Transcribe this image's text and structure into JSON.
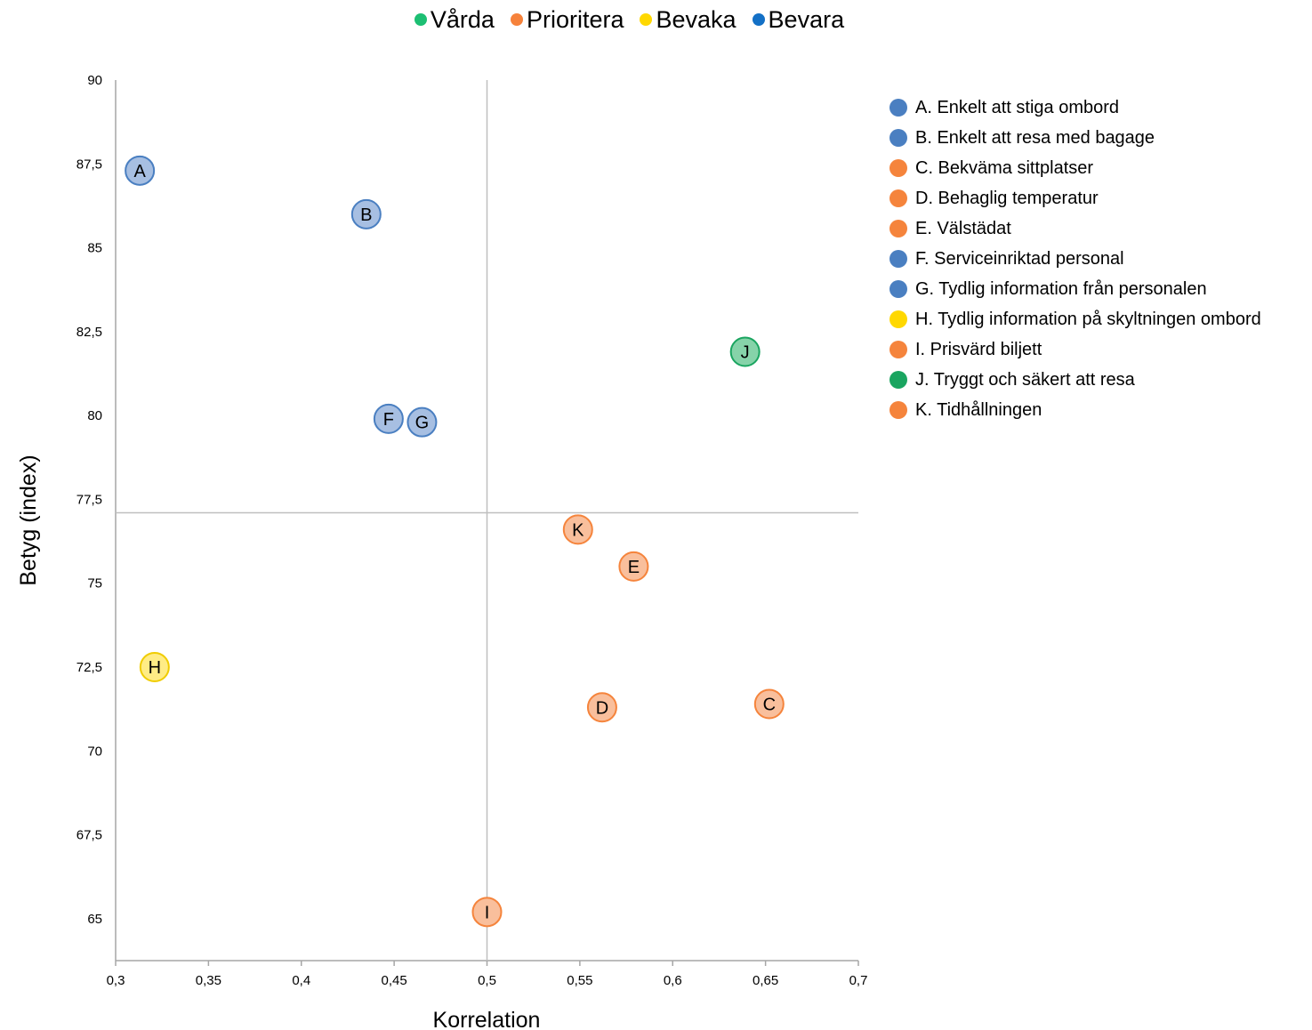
{
  "legend": {
    "items": [
      {
        "label": "Vårda",
        "color": "#1dbf73"
      },
      {
        "label": "Prioritera",
        "color": "#f6823b"
      },
      {
        "label": "Bevaka",
        "color": "#ffd800"
      },
      {
        "label": "Bevara",
        "color": "#1370c6"
      }
    ]
  },
  "point_legend": [
    {
      "label": "A. Enkelt att stiga ombord",
      "color": "#4a7fc1"
    },
    {
      "label": "B. Enkelt att resa med bagage",
      "color": "#4a7fc1"
    },
    {
      "label": "C. Bekväma sittplatser",
      "color": "#f5843c"
    },
    {
      "label": "D. Behaglig temperatur",
      "color": "#f5843c"
    },
    {
      "label": "E. Välstädat",
      "color": "#f5843c"
    },
    {
      "label": "F. Serviceinriktad personal",
      "color": "#4a7fc1"
    },
    {
      "label": "G. Tydlig information från personalen",
      "color": "#4a7fc1"
    },
    {
      "label": "H. Tydlig information på skyltningen ombord",
      "color": "#ffd800"
    },
    {
      "label": "I. Prisvärd biljett",
      "color": "#f5843c"
    },
    {
      "label": "J. Tryggt och säkert att resa",
      "color": "#1aa560"
    },
    {
      "label": "K. Tidhållningen",
      "color": "#f5843c"
    }
  ],
  "chart_data": {
    "type": "scatter",
    "xlabel": "Korrelation",
    "ylabel": "Betyg (index)",
    "xlim": [
      0.3,
      0.7
    ],
    "ylim": [
      63.75,
      90
    ],
    "x_ticks": [
      "0,3",
      "0,35",
      "0,4",
      "0,45",
      "0,5",
      "0,55",
      "0,6",
      "0,65",
      "0,7"
    ],
    "y_ticks": [
      "65",
      "67,5",
      "70",
      "72,5",
      "75",
      "77,5",
      "80",
      "82,5",
      "85",
      "87,5",
      "90"
    ],
    "quadrant_lines": {
      "x": 0.5,
      "y": 77.1
    },
    "grid": false,
    "points": [
      {
        "label": "A",
        "x": 0.313,
        "y": 87.3,
        "fill": "#a7bfe2",
        "stroke": "#4a7fc1"
      },
      {
        "label": "B",
        "x": 0.435,
        "y": 86.0,
        "fill": "#a7bfe2",
        "stroke": "#4a7fc1"
      },
      {
        "label": "C",
        "x": 0.652,
        "y": 71.4,
        "fill": "#f9bf9c",
        "stroke": "#f5843c"
      },
      {
        "label": "D",
        "x": 0.562,
        "y": 71.3,
        "fill": "#f9bf9c",
        "stroke": "#f5843c"
      },
      {
        "label": "E",
        "x": 0.579,
        "y": 75.5,
        "fill": "#f9bf9c",
        "stroke": "#f5843c"
      },
      {
        "label": "F",
        "x": 0.447,
        "y": 79.9,
        "fill": "#a7bfe2",
        "stroke": "#4a7fc1"
      },
      {
        "label": "G",
        "x": 0.465,
        "y": 79.8,
        "fill": "#a7bfe2",
        "stroke": "#4a7fc1"
      },
      {
        "label": "H",
        "x": 0.321,
        "y": 72.5,
        "fill": "#ffec85",
        "stroke": "#f0cc00"
      },
      {
        "label": "I",
        "x": 0.5,
        "y": 65.2,
        "fill": "#f9bf9c",
        "stroke": "#f5843c"
      },
      {
        "label": "J",
        "x": 0.639,
        "y": 81.9,
        "fill": "#86d3a9",
        "stroke": "#1aa560"
      },
      {
        "label": "K",
        "x": 0.549,
        "y": 76.6,
        "fill": "#f9bf9c",
        "stroke": "#f5843c"
      }
    ]
  }
}
